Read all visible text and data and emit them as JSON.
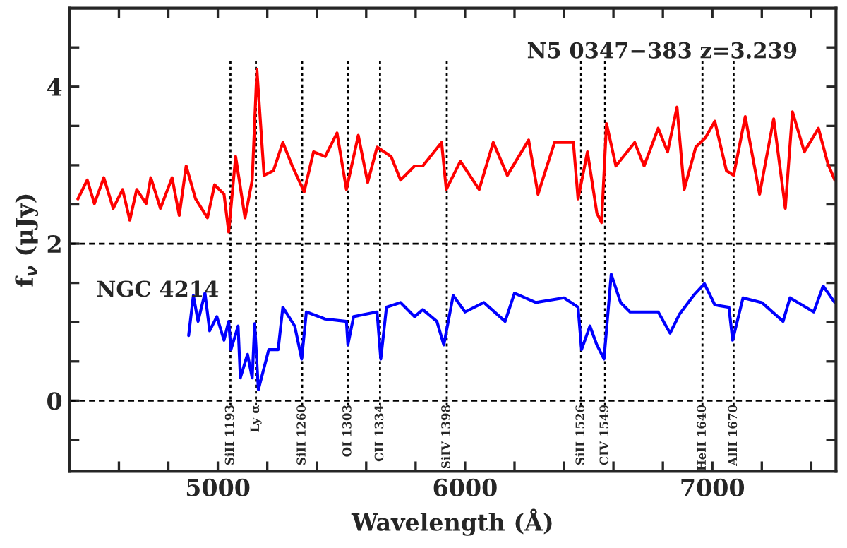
{
  "chart_data": {
    "type": "line",
    "xlabel": "Wavelength (Å)",
    "ylabel": "f$_{ν}$ (μJy)",
    "xlim": [
      4400,
      7500
    ],
    "ylim": [
      -0.9,
      5
    ],
    "xticks": [
      {
        "value": 4600,
        "label": null
      },
      {
        "value": 4800,
        "label": null
      },
      5000,
      {
        "value": 5200,
        "label": null
      },
      {
        "value": 5400,
        "label": null
      },
      {
        "value": 5600,
        "label": null
      },
      {
        "value": 5800,
        "label": null
      },
      6000,
      {
        "value": 6200,
        "label": null
      },
      {
        "value": 6400,
        "label": null
      },
      {
        "value": 6600,
        "label": null
      },
      {
        "value": 6800,
        "label": null
      },
      7000,
      {
        "value": 7200,
        "label": null
      },
      {
        "value": 7400,
        "label": null
      }
    ],
    "yticks": [
      {
        "value": -0.5,
        "label": null
      },
      0,
      {
        "value": 0.5,
        "label": null
      },
      {
        "value": 1,
        "label": null
      },
      {
        "value": 1.5,
        "label": null
      },
      2,
      {
        "value": 2.5,
        "label": null
      },
      {
        "value": 3,
        "label": null
      },
      {
        "value": 3.5,
        "label": null
      },
      4,
      {
        "value": 4.5,
        "label": null
      }
    ],
    "annotations": [
      "N5 0347−383 z=3.239",
      "NGC 4214"
    ],
    "grid": false,
    "legend": false,
    "marker": "none",
    "line_style": "solid",
    "series": [
      {
        "color": "#ff0000",
        "x": [
          4434,
          4472,
          4501,
          4539,
          4577,
          4615,
          4644,
          4672,
          4710,
          4729,
          4768,
          4815,
          4844,
          4872,
          4910,
          4958,
          4987,
          5025,
          5044,
          5072,
          5110,
          5139,
          5158,
          5187,
          5225,
          5263,
          5301,
          5349,
          5387,
          5434,
          5482,
          5520,
          5568,
          5606,
          5644,
          5701,
          5739,
          5796,
          5829,
          5905,
          5924,
          5981,
          6057,
          6114,
          6171,
          6257,
          6295,
          6362,
          6438,
          6457,
          6495,
          6533,
          6552,
          6572,
          6610,
          6686,
          6724,
          6781,
          6819,
          6857,
          6886,
          6933,
          6972,
          7010,
          7057,
          7086,
          7133,
          7191,
          7248,
          7295,
          7324,
          7372,
          7429,
          7467,
          7495
        ],
        "values": [
          2.57,
          2.81,
          2.51,
          2.84,
          2.45,
          2.69,
          2.3,
          2.69,
          2.51,
          2.84,
          2.45,
          2.84,
          2.36,
          2.99,
          2.57,
          2.33,
          2.75,
          2.63,
          2.15,
          3.11,
          2.33,
          2.81,
          4.22,
          2.87,
          2.93,
          3.29,
          2.99,
          2.66,
          3.17,
          3.11,
          3.41,
          2.69,
          3.38,
          2.78,
          3.23,
          3.11,
          2.81,
          2.99,
          2.99,
          3.29,
          2.69,
          3.05,
          2.69,
          3.29,
          2.87,
          3.32,
          2.63,
          3.29,
          3.29,
          2.57,
          3.17,
          2.39,
          2.27,
          3.53,
          2.99,
          3.29,
          2.99,
          3.47,
          3.17,
          3.74,
          2.69,
          3.23,
          3.35,
          3.56,
          2.93,
          2.87,
          3.62,
          2.63,
          3.59,
          2.45,
          3.68,
          3.17,
          3.47,
          3.02,
          2.81
        ]
      },
      {
        "color": "#0000ff",
        "x": [
          4882,
          4901,
          4920,
          4948,
          4967,
          4996,
          5025,
          5044,
          5053,
          5082,
          5091,
          5120,
          5139,
          5149,
          5164,
          5206,
          5244,
          5263,
          5311,
          5339,
          5358,
          5434,
          5520,
          5526,
          5549,
          5644,
          5659,
          5682,
          5739,
          5796,
          5829,
          5886,
          5914,
          5952,
          6000,
          6076,
          6162,
          6200,
          6286,
          6400,
          6457,
          6471,
          6505,
          6533,
          6562,
          6591,
          6629,
          6667,
          6781,
          6829,
          6867,
          6924,
          6968,
          7010,
          7067,
          7082,
          7124,
          7200,
          7286,
          7314,
          7410,
          7448,
          7495
        ],
        "values": [
          0.83,
          1.34,
          1.01,
          1.37,
          0.89,
          1.07,
          0.77,
          1.01,
          0.65,
          0.95,
          0.29,
          0.59,
          0.29,
          0.98,
          0.14,
          0.65,
          0.65,
          1.19,
          0.95,
          0.53,
          1.13,
          1.04,
          1.01,
          0.71,
          1.07,
          1.13,
          0.53,
          1.19,
          1.25,
          1.07,
          1.16,
          1.01,
          0.71,
          1.34,
          1.13,
          1.25,
          1.01,
          1.37,
          1.25,
          1.31,
          1.19,
          0.65,
          0.95,
          0.71,
          0.53,
          1.61,
          1.25,
          1.13,
          1.13,
          0.86,
          1.1,
          1.34,
          1.49,
          1.22,
          1.19,
          0.77,
          1.31,
          1.25,
          1.01,
          1.31,
          1.13,
          1.46,
          1.25
        ]
      }
    ],
    "ref_lines": [
      {
        "axis": "y",
        "value": 0,
        "line_style": "dashed"
      },
      {
        "axis": "y",
        "value": 2,
        "line_style": "dashed"
      },
      {
        "axis": "x",
        "value": 5051,
        "label": "SiII 1193",
        "line_style": "dotted"
      },
      {
        "axis": "x",
        "value": 5154,
        "label": "Ly α",
        "line_style": "dotted"
      },
      {
        "axis": "x",
        "value": 5341,
        "label": "SiII 1260",
        "line_style": "dotted"
      },
      {
        "axis": "x",
        "value": 5526,
        "label": "OI 1303",
        "line_style": "dotted"
      },
      {
        "axis": "x",
        "value": 5656,
        "label": "CII 1334",
        "line_style": "dotted"
      },
      {
        "axis": "x",
        "value": 5926,
        "label": "SiIV 1398",
        "line_style": "dotted"
      },
      {
        "axis": "x",
        "value": 6469,
        "label": "SiII 1526",
        "line_style": "dotted"
      },
      {
        "axis": "x",
        "value": 6566,
        "label": "CIV 1549",
        "line_style": "dotted"
      },
      {
        "axis": "x",
        "value": 6960,
        "label": "HeII 1640",
        "line_style": "dotted"
      },
      {
        "axis": "x",
        "value": 7086,
        "label": "AlII 1670",
        "line_style": "dotted"
      }
    ]
  }
}
